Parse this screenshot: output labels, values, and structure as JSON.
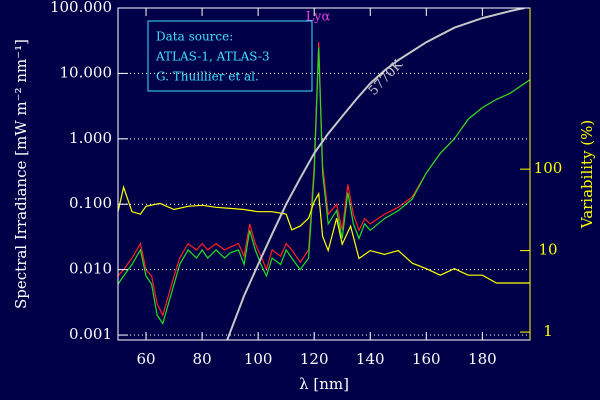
{
  "chart_data": {
    "type": "line",
    "x_label": "λ [nm]",
    "y_label": "Spectral Irradiance [mW m⁻² nm⁻¹]",
    "y2_label": "Variability (%)",
    "log_y": true,
    "log_y2": true,
    "grid": true,
    "background": "#000048",
    "axis_color": "#ffffff",
    "y2_axis_color": "#ffff00",
    "xlim": [
      50,
      197
    ],
    "ylim": [
      0.00084,
      100
    ],
    "y2lim": [
      0.8,
      9500
    ],
    "xticks": [
      60,
      80,
      100,
      120,
      140,
      160,
      180
    ],
    "yticks": [
      {
        "value": 0.001,
        "label": "0.001"
      },
      {
        "value": 0.01,
        "label": "0.010"
      },
      {
        "value": 0.1,
        "label": "0.100"
      },
      {
        "value": 1,
        "label": "1.000"
      },
      {
        "value": 10,
        "label": "10.000"
      },
      {
        "value": 100,
        "label": "100.000"
      }
    ],
    "y2ticks": [
      1,
      10,
      100
    ],
    "annotations": [
      {
        "text": "Lyα",
        "color": "#e040e0"
      },
      {
        "text": "5770K",
        "color": "#c8c8c8"
      }
    ],
    "source_note": [
      "Data source:",
      "ATLAS-1, ATLAS-3",
      "G. Thuillier et al."
    ],
    "series": [
      {
        "color": "#ff2020",
        "axis": "y",
        "x": [
          50,
          52,
          55,
          58,
          60,
          62,
          64,
          66,
          68,
          70,
          72,
          75,
          78,
          80,
          82,
          85,
          88,
          90,
          93,
          95,
          97,
          99,
          101,
          103,
          105,
          108,
          110,
          112,
          115,
          118,
          120,
          121.6,
          123,
          125,
          128,
          130,
          132,
          134,
          136,
          138,
          140,
          145,
          150,
          155,
          160,
          165,
          170,
          175,
          180,
          185,
          190,
          195,
          197
        ],
        "values": [
          0.008,
          0.01,
          0.015,
          0.025,
          0.01,
          0.008,
          0.003,
          0.002,
          0.004,
          0.008,
          0.015,
          0.025,
          0.02,
          0.025,
          0.02,
          0.025,
          0.02,
          0.022,
          0.025,
          0.016,
          0.05,
          0.025,
          0.016,
          0.01,
          0.02,
          0.016,
          0.025,
          0.02,
          0.013,
          0.02,
          0.4,
          30,
          0.4,
          0.07,
          0.1,
          0.04,
          0.2,
          0.07,
          0.04,
          0.06,
          0.05,
          0.07,
          0.09,
          0.13,
          0.3,
          0.6,
          1.0,
          2,
          3,
          4,
          5,
          7,
          8
        ]
      },
      {
        "color": "#20e020",
        "axis": "y",
        "x": [
          50,
          52,
          55,
          58,
          60,
          62,
          64,
          66,
          68,
          70,
          72,
          75,
          78,
          80,
          82,
          85,
          88,
          90,
          93,
          95,
          97,
          99,
          101,
          103,
          105,
          108,
          110,
          112,
          115,
          118,
          120,
          121.6,
          123,
          125,
          128,
          130,
          132,
          134,
          136,
          138,
          140,
          145,
          150,
          155,
          160,
          165,
          170,
          175,
          180,
          185,
          190,
          195,
          197
        ],
        "values": [
          0.006,
          0.008,
          0.012,
          0.02,
          0.008,
          0.006,
          0.002,
          0.0015,
          0.003,
          0.006,
          0.012,
          0.02,
          0.015,
          0.02,
          0.015,
          0.02,
          0.015,
          0.018,
          0.02,
          0.012,
          0.04,
          0.02,
          0.012,
          0.008,
          0.015,
          0.012,
          0.02,
          0.015,
          0.01,
          0.015,
          0.3,
          25,
          0.3,
          0.05,
          0.08,
          0.03,
          0.15,
          0.05,
          0.03,
          0.05,
          0.04,
          0.06,
          0.08,
          0.12,
          0.3,
          0.6,
          1.0,
          2,
          3,
          4,
          5,
          7,
          8
        ]
      },
      {
        "color": "#ffff00",
        "axis": "y2",
        "x": [
          50,
          52,
          55,
          58,
          60,
          65,
          70,
          75,
          80,
          85,
          90,
          95,
          100,
          105,
          110,
          112,
          115,
          118,
          120,
          121.6,
          123,
          125,
          128,
          130,
          133,
          136,
          140,
          145,
          150,
          155,
          160,
          165,
          170,
          175,
          180,
          185,
          190,
          195,
          197
        ],
        "values": [
          30,
          60,
          30,
          28,
          35,
          38,
          32,
          35,
          36,
          34,
          33,
          32,
          30,
          30,
          28,
          18,
          20,
          25,
          40,
          50,
          15,
          10,
          25,
          12,
          20,
          8,
          10,
          9,
          10,
          7,
          6,
          5,
          6,
          5,
          5,
          4,
          4,
          4,
          4
        ]
      },
      {
        "color": "#c8c8c8",
        "axis": "y",
        "x": [
          89,
          95,
          100,
          105,
          110,
          115,
          120,
          125,
          130,
          135,
          140,
          145,
          150,
          160,
          170,
          180,
          190,
          195
        ],
        "values": [
          0.00085,
          0.004,
          0.012,
          0.035,
          0.1,
          0.25,
          0.6,
          1.2,
          2.2,
          4,
          7,
          11,
          16,
          30,
          50,
          70,
          90,
          100
        ]
      }
    ]
  }
}
